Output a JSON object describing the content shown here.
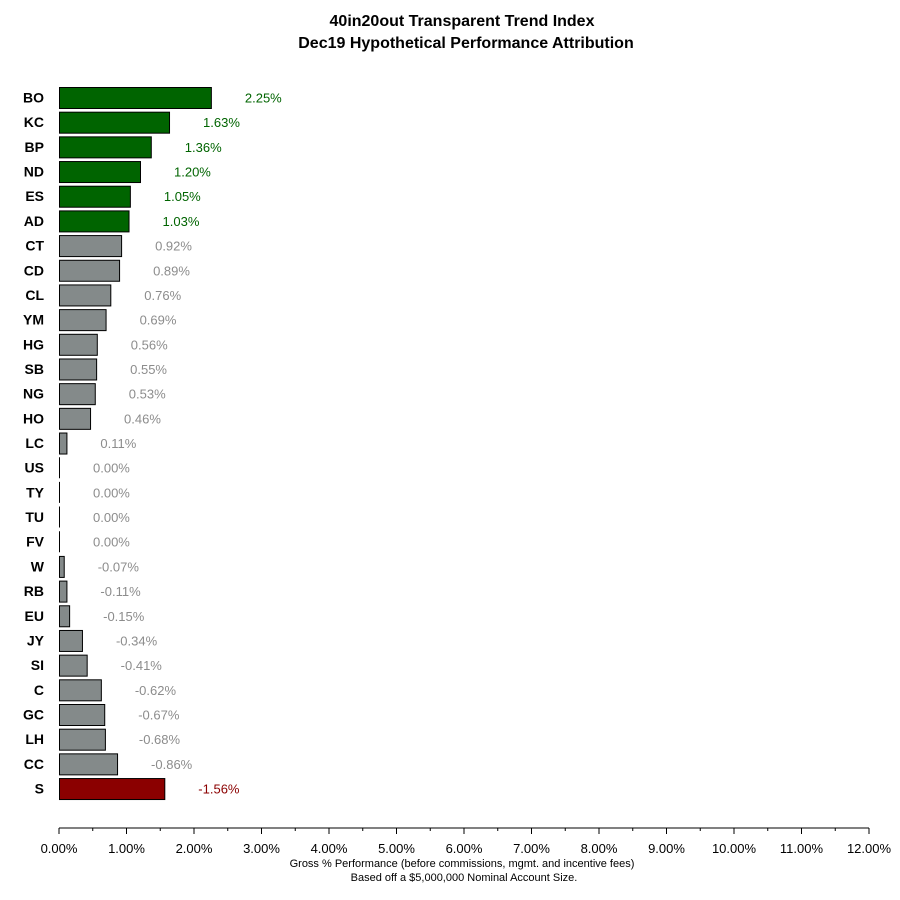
{
  "chart_data": {
    "type": "bar",
    "orientation": "horizontal",
    "title": "40in20out Transparent Trend Index",
    "subtitle": "Dec19 Hypothetical Performance Attribution",
    "xlabel": "Gross % Performance (before commissions, mgmt. and incentive fees)",
    "note": "Based off a $5,000,000 Nominal Account Size.",
    "xlim": [
      0,
      12
    ],
    "grid": false,
    "bar_magnitude": "absolute value",
    "x_ticks": [
      "0.00%",
      "1.00%",
      "2.00%",
      "3.00%",
      "4.00%",
      "5.00%",
      "6.00%",
      "7.00%",
      "8.00%",
      "9.00%",
      "10.00%",
      "11.00%",
      "12.00%"
    ],
    "categories": [
      "BO",
      "KC",
      "BP",
      "ND",
      "ES",
      "AD",
      "CT",
      "CD",
      "CL",
      "YM",
      "HG",
      "SB",
      "NG",
      "HO",
      "LC",
      "US",
      "TY",
      "TU",
      "FV",
      "W",
      "RB",
      "EU",
      "JY",
      "SI",
      "C",
      "GC",
      "LH",
      "CC",
      "S"
    ],
    "values": [
      2.25,
      1.63,
      1.36,
      1.2,
      1.05,
      1.03,
      0.92,
      0.89,
      0.76,
      0.69,
      0.56,
      0.55,
      0.53,
      0.46,
      0.11,
      0.0,
      0.0,
      0.0,
      0.0,
      -0.07,
      -0.11,
      -0.15,
      -0.34,
      -0.41,
      -0.62,
      -0.67,
      -0.68,
      -0.86,
      -1.56
    ],
    "value_labels": [
      "2.25%",
      "1.63%",
      "1.36%",
      "1.20%",
      "1.05%",
      "1.03%",
      "0.92%",
      "0.89%",
      "0.76%",
      "0.69%",
      "0.56%",
      "0.55%",
      "0.53%",
      "0.46%",
      "0.11%",
      "0.00%",
      "0.00%",
      "0.00%",
      "0.00%",
      "-0.07%",
      "-0.11%",
      "-0.15%",
      "-0.34%",
      "-0.41%",
      "-0.62%",
      "-0.67%",
      "-0.68%",
      "-0.86%",
      "-1.56%"
    ],
    "bar_colors": {
      "top_winner": "#006400",
      "neutral": "#848a8a",
      "top_loser": "#8b0000",
      "outline": "#000000"
    },
    "label_colors": {
      "top_winner": "#006400",
      "neutral": "#8c8c8c",
      "top_loser": "#8b0000"
    },
    "highlight_counts": {
      "top_winners": 6,
      "top_losers": 1
    }
  }
}
